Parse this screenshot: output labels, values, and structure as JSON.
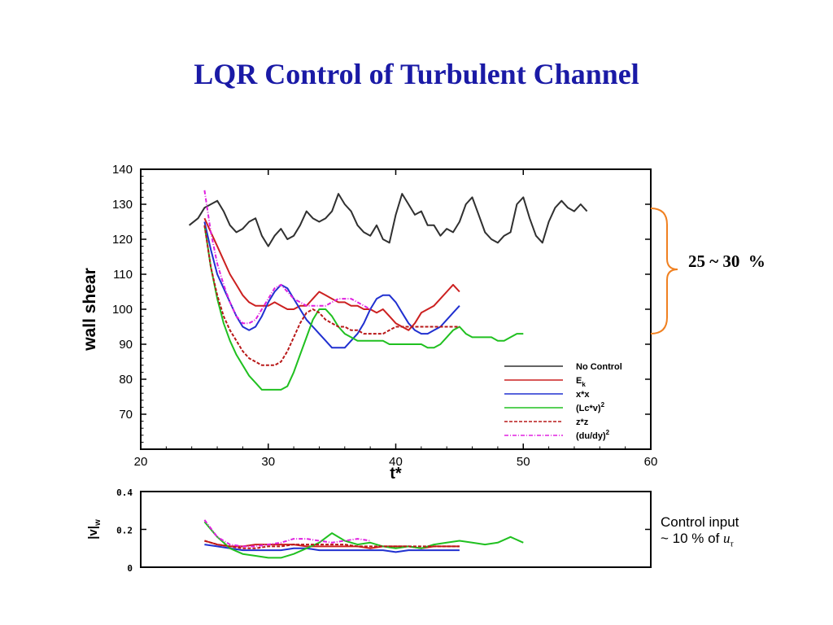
{
  "slide": {
    "title": "LQR Control of Turbulent Channel",
    "reduction_label": "25 ~ 30  %",
    "control_note_line1": "Control input",
    "control_note_line2_prefix": "~ 10 % of ",
    "control_note_symbol": "u",
    "control_note_subscript": "τ",
    "brace_color": "#f08020"
  },
  "chart_data": [
    {
      "type": "line",
      "xlabel": "t*",
      "ylabel": "wall shear",
      "xlim": [
        20,
        60
      ],
      "ylim": [
        60,
        140
      ],
      "xticks": [
        20,
        30,
        40,
        50,
        60
      ],
      "yticks": [
        70,
        80,
        90,
        100,
        110,
        120,
        130,
        140
      ],
      "legend_position": "bottom-right",
      "grid": false,
      "series": [
        {
          "name": "No Control",
          "color": "#303030",
          "style": "solid",
          "x": [
            23.8,
            24.5,
            25,
            25.5,
            26,
            26.5,
            27,
            27.5,
            28,
            28.5,
            29,
            29.5,
            30,
            30.5,
            31,
            31.5,
            32,
            32.5,
            33,
            33.5,
            34,
            34.5,
            35,
            35.5,
            36,
            36.5,
            37,
            37.5,
            38,
            38.5,
            39,
            39.5,
            40,
            40.5,
            41,
            41.5,
            42,
            42.5,
            43,
            43.5,
            44,
            44.5,
            45,
            45.5,
            46,
            46.5,
            47,
            47.5,
            48,
            48.5,
            49,
            49.5,
            50,
            50.5,
            51,
            51.5,
            52,
            52.5,
            53,
            53.5,
            54,
            54.5,
            55
          ],
          "y": [
            124,
            126,
            129,
            130,
            131,
            128,
            124,
            122,
            123,
            125,
            126,
            121,
            118,
            121,
            123,
            120,
            121,
            124,
            128,
            126,
            125,
            126,
            128,
            133,
            130,
            128,
            124,
            122,
            121,
            124,
            120,
            119,
            127,
            133,
            130,
            127,
            128,
            124,
            124,
            121,
            123,
            122,
            125,
            130,
            132,
            127,
            122,
            120,
            119,
            121,
            122,
            130,
            132,
            126,
            121,
            119,
            125,
            129,
            131,
            129,
            128,
            130,
            128
          ]
        },
        {
          "name": "E_k",
          "color": "#cc2020",
          "style": "solid",
          "x": [
            25,
            25.5,
            26,
            26.5,
            27,
            27.5,
            28,
            28.5,
            29,
            29.5,
            30,
            30.5,
            31,
            31.5,
            32,
            32.5,
            33,
            33.5,
            34,
            34.5,
            35,
            35.5,
            36,
            36.5,
            37,
            37.5,
            38,
            38.5,
            39,
            39.5,
            40,
            40.5,
            41,
            41.5,
            42,
            42.5,
            43,
            43.5,
            44,
            44.5,
            45
          ],
          "y": [
            126,
            122,
            118,
            114,
            110,
            107,
            104,
            102,
            101,
            101,
            101,
            102,
            101,
            100,
            100,
            101,
            101,
            103,
            105,
            104,
            103,
            102,
            102,
            101,
            101,
            100,
            100,
            99,
            100,
            98,
            96,
            95,
            94,
            96,
            99,
            100,
            101,
            103,
            105,
            107,
            105
          ]
        },
        {
          "name": "x*x",
          "color": "#2030d0",
          "style": "solid",
          "x": [
            25,
            25.5,
            26,
            26.5,
            27,
            27.5,
            28,
            28.5,
            29,
            29.5,
            30,
            30.5,
            31,
            31.5,
            32,
            32.5,
            33,
            33.5,
            34,
            34.5,
            35,
            35.5,
            36,
            36.5,
            37,
            37.5,
            38,
            38.5,
            39,
            39.5,
            40,
            40.5,
            41,
            41.5,
            42,
            42.5,
            43,
            43.5,
            44,
            44.5,
            45
          ],
          "y": [
            125,
            117,
            110,
            106,
            102,
            98,
            95,
            94,
            95,
            98,
            102,
            105,
            107,
            106,
            103,
            100,
            97,
            95,
            93,
            91,
            89,
            89,
            89,
            91,
            93,
            96,
            100,
            103,
            104,
            104,
            102,
            99,
            96,
            94,
            93,
            93,
            94,
            95,
            97,
            99,
            101
          ]
        },
        {
          "name": "(Lc*v)^2",
          "color": "#20c020",
          "style": "solid",
          "x": [
            25,
            25.5,
            26,
            26.5,
            27,
            27.5,
            28,
            28.5,
            29,
            29.5,
            30,
            30.5,
            31,
            31.5,
            32,
            32.5,
            33,
            33.5,
            34,
            34.5,
            35,
            35.5,
            36,
            36.5,
            37,
            37.5,
            38,
            38.5,
            39,
            39.5,
            40,
            40.5,
            41,
            41.5,
            42,
            42.5,
            43,
            43.5,
            44,
            44.5,
            45,
            45.5,
            46,
            46.5,
            47,
            47.5,
            48,
            48.5,
            49,
            49.5,
            50
          ],
          "y": [
            124,
            112,
            103,
            96,
            91,
            87,
            84,
            81,
            79,
            77,
            77,
            77,
            77,
            78,
            82,
            87,
            92,
            97,
            100,
            100,
            98,
            95,
            93,
            92,
            91,
            91,
            91,
            91,
            91,
            90,
            90,
            90,
            90,
            90,
            90,
            89,
            89,
            90,
            92,
            94,
            95,
            93,
            92,
            92,
            92,
            92,
            91,
            91,
            92,
            93,
            93
          ]
        },
        {
          "name": "z*z",
          "color": "#b81818",
          "style": "dashed",
          "x": [
            25,
            25.5,
            26,
            26.5,
            27,
            27.5,
            28,
            28.5,
            29,
            29.5,
            30,
            30.5,
            31,
            31.5,
            32,
            32.5,
            33,
            33.5,
            34,
            34.5,
            35,
            35.5,
            36,
            36.5,
            37,
            37.5,
            38,
            38.5,
            39,
            39.5,
            40,
            40.5,
            41,
            41.5,
            42,
            42.5,
            43,
            43.5,
            44,
            44.5,
            45
          ],
          "y": [
            124,
            112,
            104,
            98,
            94,
            91,
            88,
            86,
            85,
            84,
            84,
            84,
            85,
            88,
            92,
            96,
            99,
            100,
            99,
            97,
            96,
            95,
            95,
            94,
            94,
            93,
            93,
            93,
            93,
            94,
            95,
            95,
            95,
            95,
            95,
            95,
            95,
            95,
            95,
            95,
            95
          ]
        },
        {
          "name": "(du/dy)^2",
          "color": "#e020e0",
          "style": "dashdot",
          "x": [
            25,
            25.5,
            26,
            26.5,
            27,
            27.5,
            28,
            28.5,
            29,
            29.5,
            30,
            30.5,
            31,
            31.5,
            32,
            32.5,
            33,
            33.5,
            34,
            34.5,
            35,
            35.5,
            36,
            36.5,
            37,
            37.5,
            38
          ],
          "y": [
            134,
            122,
            113,
            107,
            102,
            98,
            96,
            96,
            97,
            100,
            103,
            106,
            107,
            105,
            103,
            102,
            101,
            101,
            101,
            101,
            102,
            103,
            103,
            103,
            102,
            101,
            100
          ]
        }
      ]
    },
    {
      "type": "line",
      "xlabel": "",
      "ylabel": "|v|_w",
      "xlim": [
        20,
        60
      ],
      "ylim": [
        0,
        0.4
      ],
      "yticks": [
        0,
        0.2,
        0.4
      ],
      "ytick_labels": [
        "0",
        "0.2",
        "0.4"
      ],
      "grid": false,
      "series": [
        {
          "color": "#cc2020",
          "style": "solid",
          "x": [
            25,
            26,
            27,
            28,
            29,
            30,
            31,
            32,
            33,
            34,
            35,
            36,
            37,
            38,
            39,
            40,
            41,
            42,
            43,
            44,
            45
          ],
          "y": [
            0.14,
            0.12,
            0.11,
            0.11,
            0.12,
            0.12,
            0.12,
            0.12,
            0.11,
            0.11,
            0.11,
            0.11,
            0.11,
            0.1,
            0.11,
            0.11,
            0.11,
            0.1,
            0.11,
            0.11,
            0.11
          ]
        },
        {
          "color": "#2030d0",
          "style": "solid",
          "x": [
            25,
            26,
            27,
            28,
            29,
            30,
            31,
            32,
            33,
            34,
            35,
            36,
            37,
            38,
            39,
            40,
            41,
            42,
            43,
            44,
            45
          ],
          "y": [
            0.12,
            0.11,
            0.1,
            0.09,
            0.09,
            0.09,
            0.09,
            0.1,
            0.1,
            0.09,
            0.09,
            0.09,
            0.09,
            0.09,
            0.09,
            0.08,
            0.09,
            0.09,
            0.09,
            0.09,
            0.09
          ]
        },
        {
          "color": "#20c020",
          "style": "solid",
          "x": [
            25,
            26,
            27,
            28,
            29,
            30,
            31,
            32,
            33,
            34,
            35,
            36,
            37,
            38,
            39,
            40,
            41,
            42,
            43,
            44,
            45,
            46,
            47,
            48,
            49,
            50
          ],
          "y": [
            0.24,
            0.16,
            0.1,
            0.07,
            0.06,
            0.05,
            0.05,
            0.07,
            0.1,
            0.13,
            0.18,
            0.14,
            0.12,
            0.13,
            0.11,
            0.1,
            0.11,
            0.1,
            0.12,
            0.13,
            0.14,
            0.13,
            0.12,
            0.13,
            0.16,
            0.13
          ]
        },
        {
          "color": "#b81818",
          "style": "dashed",
          "x": [
            25,
            26,
            27,
            28,
            29,
            30,
            31,
            32,
            33,
            34,
            35,
            36,
            37,
            38,
            39,
            40,
            41,
            42,
            43,
            44,
            45
          ],
          "y": [
            0.14,
            0.12,
            0.11,
            0.1,
            0.1,
            0.11,
            0.11,
            0.12,
            0.12,
            0.12,
            0.12,
            0.12,
            0.11,
            0.11,
            0.11,
            0.11,
            0.11,
            0.11,
            0.11,
            0.11,
            0.11
          ]
        },
        {
          "color": "#e020e0",
          "style": "dashdot",
          "x": [
            25,
            26,
            27,
            28,
            29,
            30,
            31,
            32,
            33,
            34,
            35,
            36,
            37,
            38
          ],
          "y": [
            0.25,
            0.16,
            0.12,
            0.11,
            0.11,
            0.12,
            0.13,
            0.15,
            0.15,
            0.14,
            0.13,
            0.14,
            0.15,
            0.14
          ]
        }
      ]
    }
  ]
}
